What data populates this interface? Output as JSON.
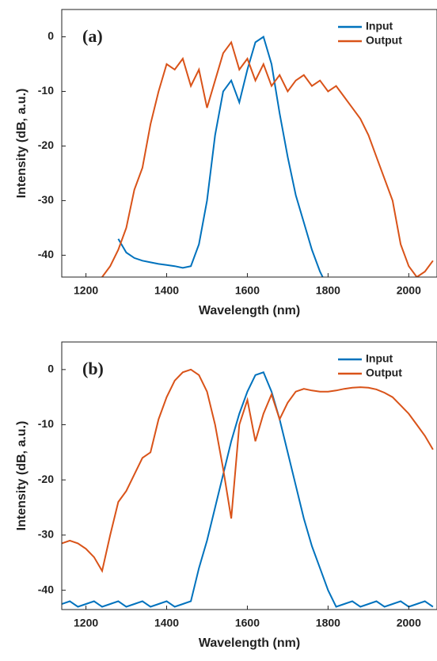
{
  "chart_data": [
    {
      "type": "line",
      "label": "(a)",
      "xlabel": "Wavelength (nm)",
      "ylabel": "Intensity (dB, a.u.)",
      "x": [
        1140,
        1160,
        1180,
        1200,
        1220,
        1240,
        1260,
        1280,
        1300,
        1320,
        1340,
        1360,
        1380,
        1400,
        1420,
        1440,
        1460,
        1480,
        1500,
        1520,
        1540,
        1560,
        1580,
        1600,
        1620,
        1640,
        1660,
        1680,
        1700,
        1720,
        1740,
        1760,
        1780,
        1800,
        1820,
        1840,
        1860,
        1880,
        1900,
        1920,
        1940,
        1960,
        1980,
        2000,
        2020,
        2040,
        2060
      ],
      "series": [
        {
          "name": "Input",
          "color": "#0072bd",
          "values": [
            null,
            null,
            null,
            null,
            null,
            null,
            null,
            -37,
            -39.5,
            -40.5,
            -41,
            -41.3,
            -41.6,
            -41.8,
            -42,
            -42.3,
            -42,
            -38,
            -30,
            -18,
            -10,
            -8,
            -12,
            -6,
            -1,
            0,
            -5,
            -14,
            -22,
            -29,
            -34,
            -39,
            -43,
            -46,
            null,
            null,
            null,
            null,
            null,
            null,
            null,
            null,
            null,
            null,
            null,
            null,
            null
          ]
        },
        {
          "name": "Output",
          "color": "#d95319",
          "values": [
            null,
            null,
            -46,
            -46,
            -45,
            -44,
            -42,
            -39,
            -35,
            -28,
            -24,
            -16,
            -10,
            -5,
            -6,
            -4,
            -9,
            -6,
            -13,
            -8,
            -3,
            -1,
            -6,
            -4,
            -8,
            -5,
            -9,
            -7,
            -10,
            -8,
            -7,
            -9,
            -8,
            -10,
            -9,
            -11,
            -13,
            -15,
            -18,
            -22,
            -26,
            -30,
            -38,
            -42,
            -44,
            -43,
            -41
          ]
        }
      ],
      "xlim": [
        1140,
        2070
      ],
      "ylim": [
        -44,
        5
      ],
      "xticks": [
        1200,
        1400,
        1600,
        1800,
        2000
      ],
      "yticks": [
        -40,
        -30,
        -20,
        -10,
        0
      ],
      "legend": "top-right"
    },
    {
      "type": "line",
      "label": "(b)",
      "xlabel": "Wavelength (nm)",
      "ylabel": "Intensity (dB, a.u.)",
      "x": [
        1140,
        1160,
        1180,
        1200,
        1220,
        1240,
        1260,
        1280,
        1300,
        1320,
        1340,
        1360,
        1380,
        1400,
        1420,
        1440,
        1460,
        1480,
        1500,
        1520,
        1540,
        1560,
        1580,
        1600,
        1620,
        1640,
        1660,
        1680,
        1700,
        1720,
        1740,
        1760,
        1780,
        1800,
        1820,
        1840,
        1860,
        1880,
        1900,
        1920,
        1940,
        1960,
        1980,
        2000,
        2020,
        2040,
        2060
      ],
      "series": [
        {
          "name": "Input",
          "color": "#0072bd",
          "values": [
            -42.5,
            -42,
            -43,
            -42.5,
            -42,
            -43,
            -42.5,
            -42,
            -43,
            -42.5,
            -42,
            -43,
            -42.5,
            -42,
            -43,
            -42.5,
            -42,
            -36,
            -31,
            -25,
            -19,
            -13,
            -8,
            -4,
            -1,
            -0.5,
            -4,
            -9,
            -15,
            -21,
            -27,
            -32,
            -36,
            -40,
            -43,
            -42.5,
            -42,
            -43,
            -42.5,
            -42,
            -43,
            -42.5,
            -42,
            -43,
            -42.5,
            -42,
            -43
          ]
        },
        {
          "name": "Output",
          "color": "#d95319",
          "values": [
            -31.5,
            -31,
            -31.5,
            -32.5,
            -34,
            -36.5,
            -30,
            -24,
            -22,
            -19,
            -16,
            -15,
            -9,
            -5,
            -2,
            -0.5,
            0,
            -1,
            -4,
            -10,
            -18,
            -27,
            -10,
            -5.5,
            -13,
            -8,
            -4.5,
            -9,
            -6,
            -4,
            -3.5,
            -3.8,
            -4,
            -4,
            -3.8,
            -3.5,
            -3.3,
            -3.2,
            -3.3,
            -3.6,
            -4.2,
            -5,
            -6.5,
            -8,
            -10,
            -12,
            -14.5
          ]
        }
      ],
      "xlim": [
        1140,
        2070
      ],
      "ylim": [
        -43.5,
        5
      ],
      "xticks": [
        1200,
        1400,
        1600,
        1800,
        2000
      ],
      "yticks": [
        -40,
        -30,
        -20,
        -10,
        0
      ],
      "legend": "top-right"
    }
  ]
}
